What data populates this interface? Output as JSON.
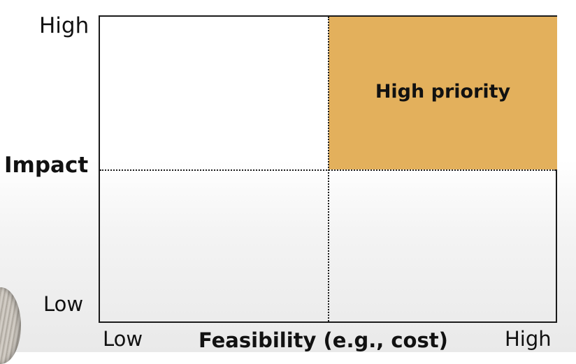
{
  "y_axis": {
    "title": "Impact",
    "high_label": "High",
    "low_label": "Low"
  },
  "x_axis": {
    "title": "Feasibility (e.g., cost)",
    "low_label": "Low",
    "high_label": "High"
  },
  "quadrants": {
    "top_right": {
      "label": "High priority",
      "color": "#e3b05c"
    },
    "top_left": {
      "label": ""
    },
    "bottom_left": {
      "label": ""
    },
    "bottom_right": {
      "label": ""
    }
  },
  "colors": {
    "line": "#1a1a1a",
    "highlight": "#e3b05c"
  }
}
